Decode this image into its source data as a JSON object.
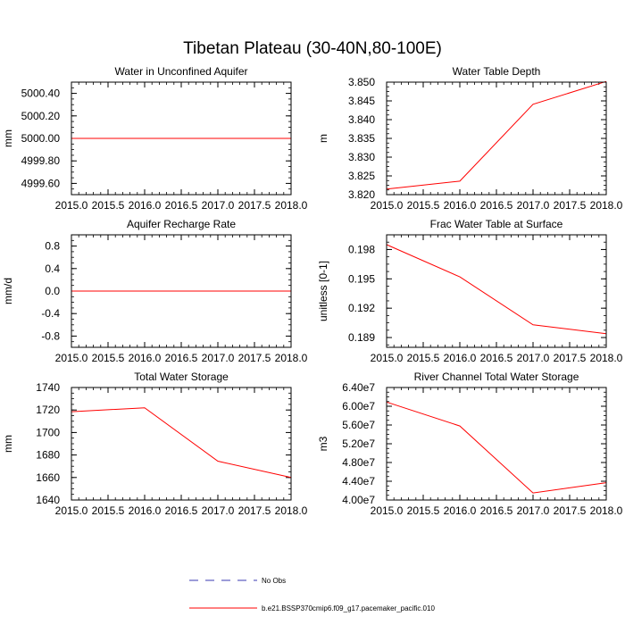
{
  "figure": {
    "title": "Tibetan Plateau (30-40N,80-100E)",
    "legend": [
      {
        "label": "No Obs",
        "color": "#3a3ab0",
        "style": "dashed"
      },
      {
        "label": "b.e21.BSSP370cmip6.f09_g17.pacemaker_pacific.010",
        "color": "#ff0000",
        "style": "solid"
      }
    ]
  },
  "chart_data": [
    {
      "type": "line",
      "title": "Water in Unconfined Aquifer",
      "xlabel": "",
      "ylabel": "mm",
      "xlim": [
        2015.0,
        2018.0
      ],
      "ylim": [
        4999.5,
        5000.5
      ],
      "x_ticks": [
        "2015.0",
        "2015.5",
        "2016.0",
        "2016.5",
        "2017.0",
        "2017.5",
        "2018.0"
      ],
      "y_ticks": [
        "4999.60",
        "4999.80",
        "5000.00",
        "5000.20",
        "5000.40"
      ],
      "series": [
        {
          "x": [
            2015,
            2016,
            2017,
            2018
          ],
          "values": [
            5000.0,
            5000.0,
            5000.0,
            5000.0
          ],
          "color": "#ff0000"
        }
      ]
    },
    {
      "type": "line",
      "title": "Water Table Depth",
      "xlabel": "",
      "ylabel": "m",
      "xlim": [
        2015.0,
        2018.0
      ],
      "ylim": [
        3.82,
        3.85
      ],
      "x_ticks": [
        "2015.0",
        "2015.5",
        "2016.0",
        "2016.5",
        "2017.0",
        "2017.5",
        "2018.0"
      ],
      "y_ticks": [
        "3.820",
        "3.825",
        "3.830",
        "3.835",
        "3.840",
        "3.845",
        "3.850"
      ],
      "series": [
        {
          "x": [
            2015,
            2016,
            2017,
            2018
          ],
          "values": [
            3.8215,
            3.8236,
            3.8441,
            3.8502
          ],
          "color": "#ff0000"
        }
      ]
    },
    {
      "type": "line",
      "title": "Aquifer Recharge Rate",
      "xlabel": "",
      "ylabel": "mm/d",
      "xlim": [
        2015.0,
        2018.0
      ],
      "ylim": [
        -1.0,
        1.0
      ],
      "x_ticks": [
        "2015.0",
        "2015.5",
        "2016.0",
        "2016.5",
        "2017.0",
        "2017.5",
        "2018.0"
      ],
      "y_ticks": [
        "-0.8",
        "-0.4",
        "0.0",
        "0.4",
        "0.8"
      ],
      "series": [
        {
          "x": [
            2015,
            2016,
            2017,
            2018
          ],
          "values": [
            0.0,
            0.0,
            0.0,
            0.0
          ],
          "color": "#ff0000"
        }
      ]
    },
    {
      "type": "line",
      "title": "Frac Water Table at Surface",
      "xlabel": "",
      "ylabel": "unitless [0-1]",
      "xlim": [
        2015.0,
        2018.0
      ],
      "ylim": [
        0.188,
        0.1995
      ],
      "x_ticks": [
        "2015.0",
        "2015.5",
        "2016.0",
        "2016.5",
        "2017.0",
        "2017.5",
        "2018.0"
      ],
      "y_ticks": [
        "0.189",
        "0.192",
        "0.195",
        "0.198"
      ],
      "series": [
        {
          "x": [
            2015,
            2016,
            2017,
            2018
          ],
          "values": [
            0.1985,
            0.1952,
            0.1903,
            0.1894
          ],
          "color": "#ff0000"
        }
      ]
    },
    {
      "type": "line",
      "title": "Total Water Storage",
      "xlabel": "",
      "ylabel": "mm",
      "xlim": [
        2015.0,
        2018.0
      ],
      "ylim": [
        1640,
        1740
      ],
      "x_ticks": [
        "2015.0",
        "2015.5",
        "2016.0",
        "2016.5",
        "2017.0",
        "2017.5",
        "2018.0"
      ],
      "y_ticks": [
        "1640",
        "1660",
        "1680",
        "1700",
        "1720",
        "1740"
      ],
      "series": [
        {
          "x": [
            2015,
            2016,
            2017,
            2018
          ],
          "values": [
            1718.5,
            1722.0,
            1674.5,
            1660.0
          ],
          "color": "#ff0000"
        }
      ]
    },
    {
      "type": "line",
      "title": "River Channel Total Water Storage",
      "xlabel": "",
      "ylabel": "m3",
      "xlim": [
        2015.0,
        2018.0
      ],
      "ylim": [
        40000000,
        64000000
      ],
      "x_ticks": [
        "2015.0",
        "2015.5",
        "2016.0",
        "2016.5",
        "2017.0",
        "2017.5",
        "2018.0"
      ],
      "y_ticks": [
        "4.00e7",
        "4.40e7",
        "4.80e7",
        "5.20e7",
        "5.60e7",
        "6.00e7",
        "6.40e7"
      ],
      "series": [
        {
          "x": [
            2015,
            2016,
            2017,
            2018
          ],
          "values": [
            60900000,
            55800000,
            41500000,
            43700000
          ],
          "color": "#ff0000"
        }
      ]
    }
  ]
}
